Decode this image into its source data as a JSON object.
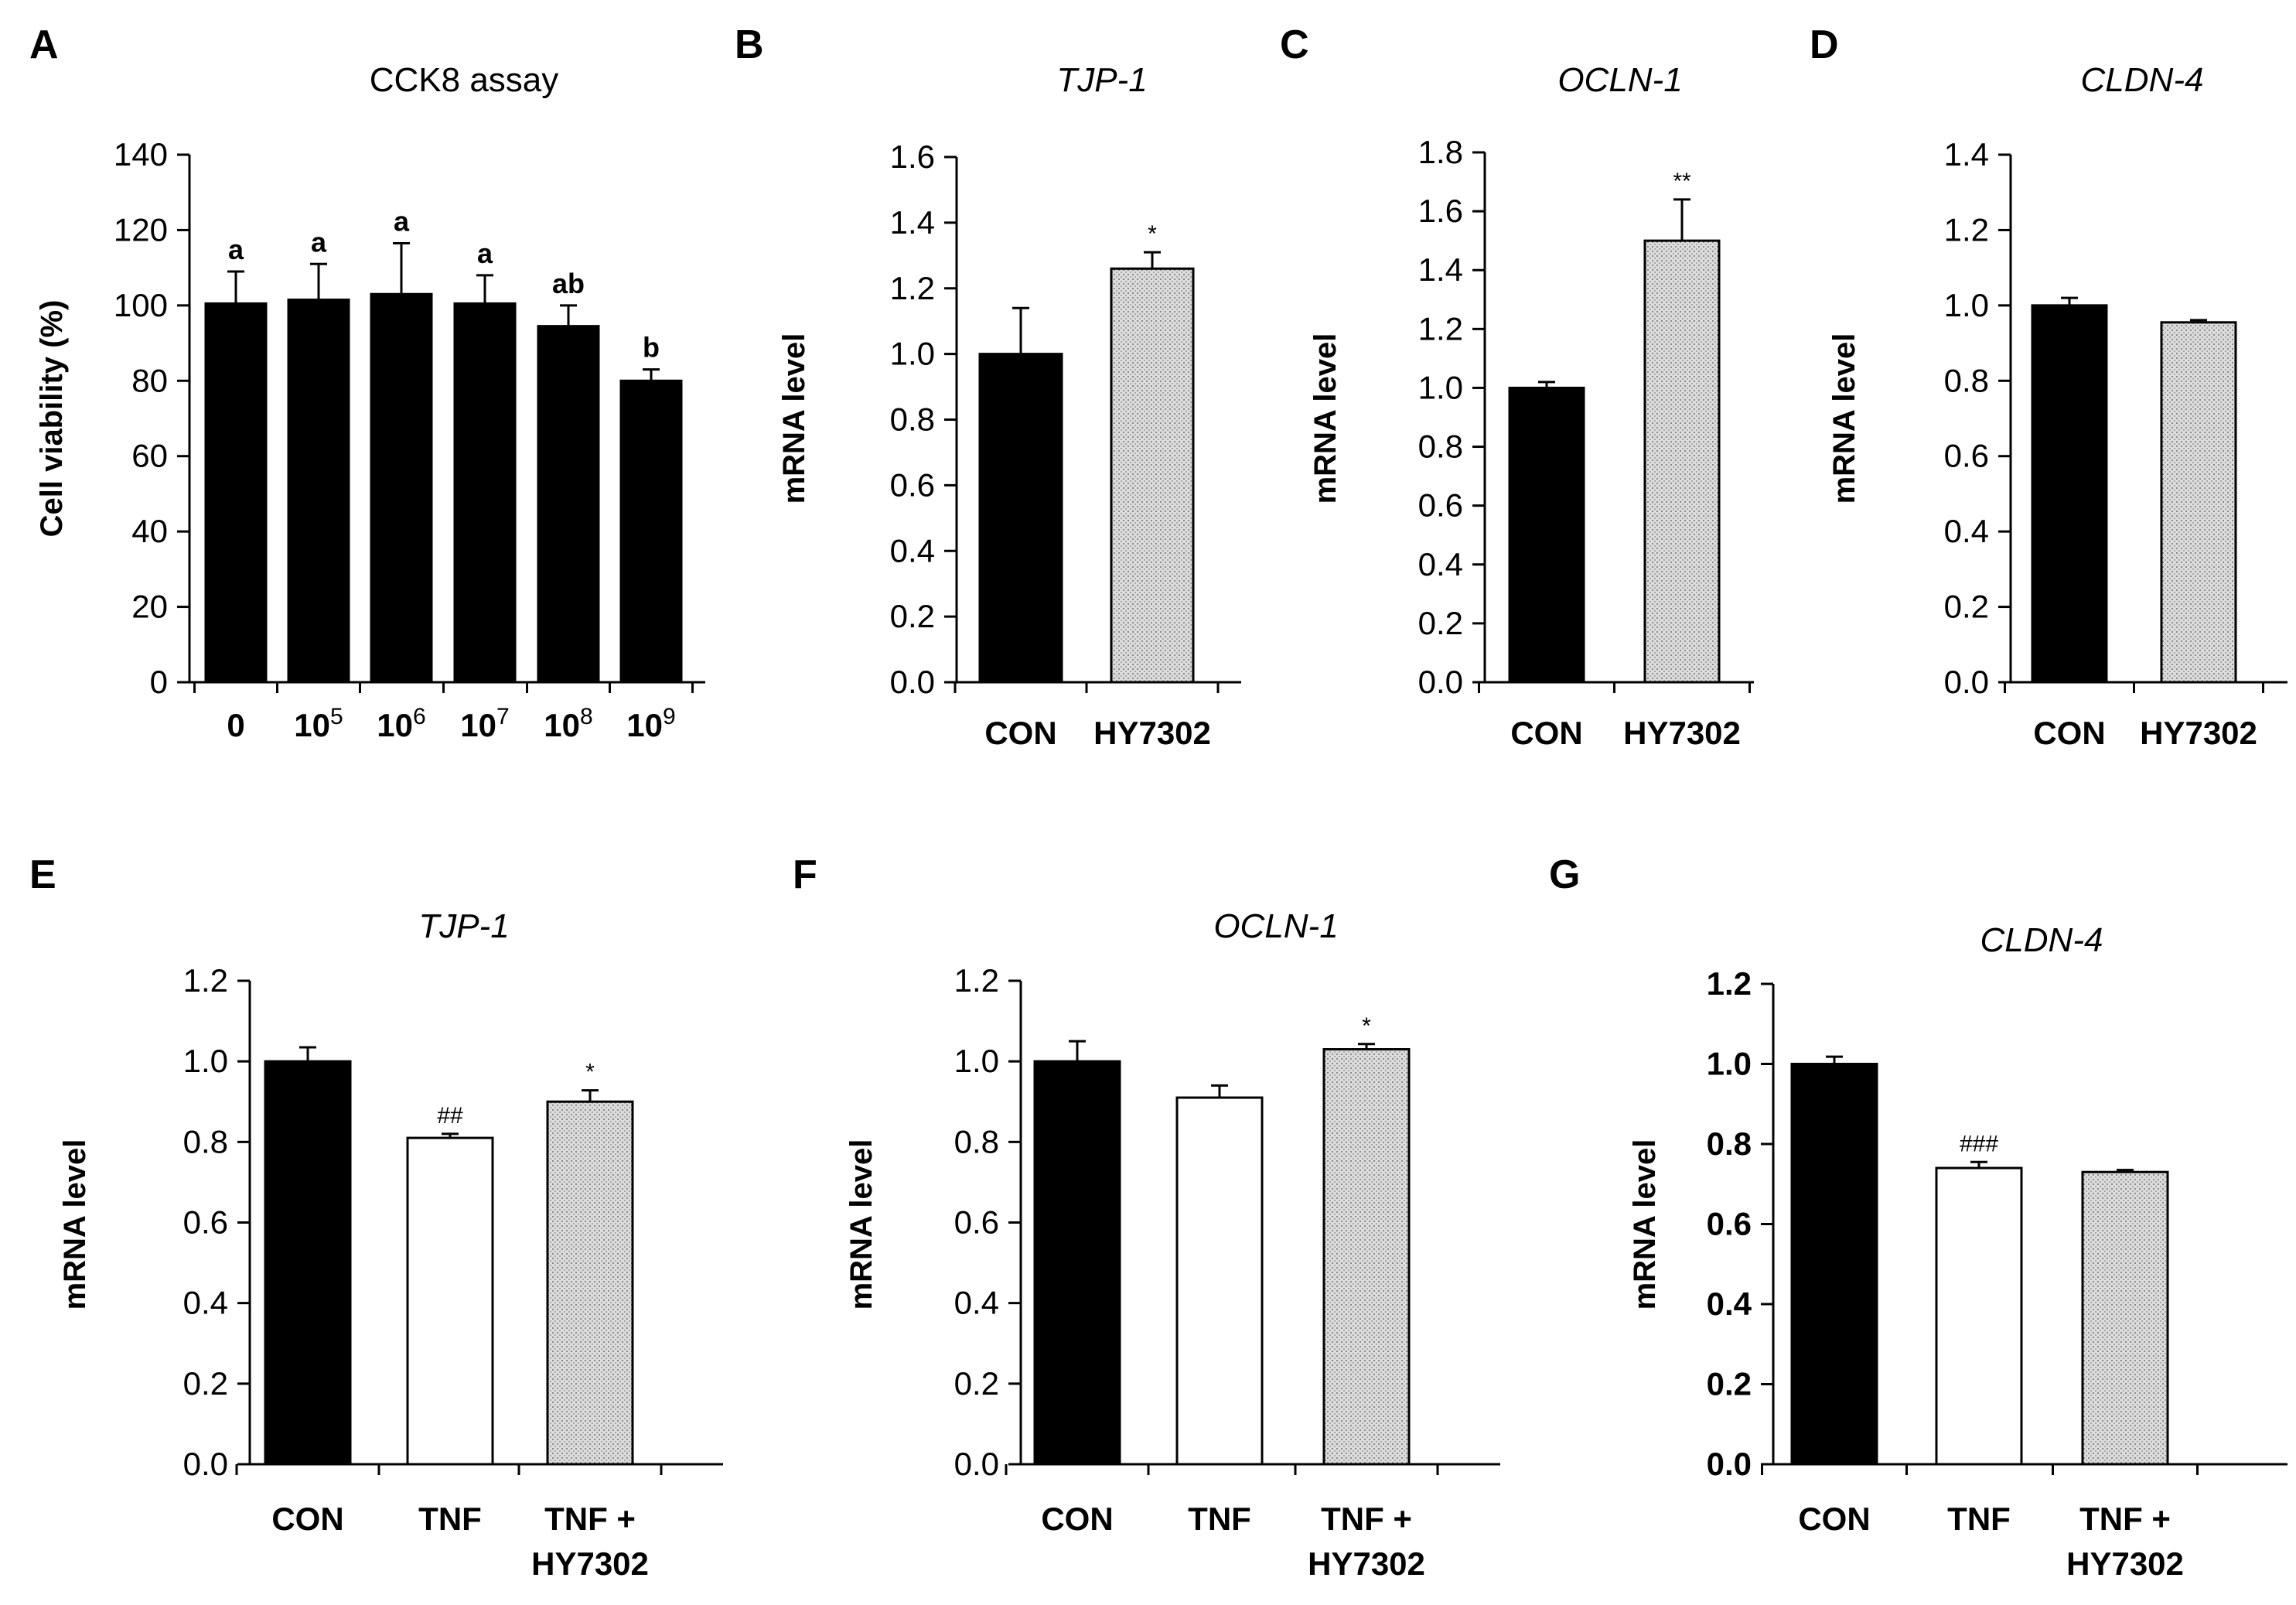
{
  "colors": {
    "axis": "#000000",
    "bar_black": "#000000",
    "bar_white": "#ffffff",
    "bar_dotted": "#d8d8d8",
    "text": "#000000"
  },
  "chart_data": [
    {
      "panel": "A",
      "type": "bar",
      "title": "CCK8 assay",
      "title_italic": false,
      "ylabel": "Cell viability (%)",
      "ylim": [
        0,
        140
      ],
      "yticks": [
        "0",
        "20",
        "40",
        "60",
        "80",
        "100",
        "120",
        "140"
      ],
      "categories": [
        "0",
        "10",
        "10",
        "10",
        "10",
        "10"
      ],
      "category_superscripts": [
        "",
        "5",
        "6",
        "7",
        "8",
        "9"
      ],
      "values": [
        100.5,
        101.5,
        103.0,
        100.5,
        94.5,
        80.0
      ],
      "errors": [
        8.5,
        9.5,
        13.5,
        7.5,
        5.5,
        3.0
      ],
      "fills": [
        "black",
        "black",
        "black",
        "black",
        "black",
        "black"
      ],
      "annotations": [
        "a",
        "a",
        "a",
        "a",
        "ab",
        "b"
      ],
      "annotation_style": "bold"
    },
    {
      "panel": "B",
      "type": "bar",
      "title": "TJP-1",
      "title_italic": true,
      "ylabel": "mRNA level",
      "ylim": [
        0,
        1.6
      ],
      "yticks": [
        "0.0",
        "0.2",
        "0.4",
        "0.6",
        "0.8",
        "1.0",
        "1.2",
        "1.4",
        "1.6"
      ],
      "categories": [
        "CON",
        "HY7302"
      ],
      "values": [
        1.0,
        1.26
      ],
      "errors": [
        0.14,
        0.05
      ],
      "fills": [
        "black",
        "dotted"
      ],
      "annotations": [
        "",
        "*"
      ],
      "annotation_style": "normal"
    },
    {
      "panel": "C",
      "type": "bar",
      "title": "OCLN-1",
      "title_italic": true,
      "ylabel": "mRNA level",
      "ylim": [
        0,
        1.8
      ],
      "yticks": [
        "0.0",
        "0.2",
        "0.4",
        "0.6",
        "0.8",
        "1.0",
        "1.2",
        "1.4",
        "1.6",
        "1.8"
      ],
      "categories": [
        "CON",
        "HY7302"
      ],
      "values": [
        1.0,
        1.5
      ],
      "errors": [
        0.02,
        0.14
      ],
      "fills": [
        "black",
        "dotted"
      ],
      "annotations": [
        "",
        "**"
      ],
      "annotation_style": "normal"
    },
    {
      "panel": "D",
      "type": "bar",
      "title": "CLDN-4",
      "title_italic": true,
      "ylabel": "mRNA level",
      "ylim": [
        0,
        1.4
      ],
      "yticks": [
        "0.0",
        "0.2",
        "0.4",
        "0.6",
        "0.8",
        "1.0",
        "1.2",
        "1.4"
      ],
      "categories": [
        "CON",
        "HY7302"
      ],
      "values": [
        1.0,
        0.955
      ],
      "errors": [
        0.02,
        0.006
      ],
      "fills": [
        "black",
        "dotted"
      ],
      "annotations": [
        "",
        ""
      ],
      "annotation_style": "normal"
    },
    {
      "panel": "E",
      "type": "bar",
      "title": "TJP-1",
      "title_italic": true,
      "ylabel": "mRNA level",
      "ylim": [
        0,
        1.2
      ],
      "yticks": [
        "0.0",
        "0.2",
        "0.4",
        "0.6",
        "0.8",
        "1.0",
        "1.2"
      ],
      "categories": [
        "CON",
        "TNF",
        "TNF + HY7302"
      ],
      "category_lines": [
        [
          "CON"
        ],
        [
          "TNF"
        ],
        [
          "TNF +",
          "HY7302"
        ]
      ],
      "values": [
        1.0,
        0.81,
        0.9
      ],
      "errors": [
        0.035,
        0.01,
        0.028
      ],
      "fills": [
        "black",
        "white",
        "dotted"
      ],
      "annotations": [
        "",
        "##",
        "*"
      ],
      "annotation_style": "normal"
    },
    {
      "panel": "F",
      "type": "bar",
      "title": "OCLN-1",
      "title_italic": true,
      "ylabel": "mRNA level",
      "ylim": [
        0,
        1.2
      ],
      "yticks": [
        "0.0",
        "0.2",
        "0.4",
        "0.6",
        "0.8",
        "1.0",
        "1.2"
      ],
      "categories": [
        "CON",
        "TNF",
        "TNF + HY7302"
      ],
      "category_lines": [
        [
          "CON"
        ],
        [
          "TNF"
        ],
        [
          "TNF +",
          "HY7302"
        ]
      ],
      "values": [
        1.0,
        0.91,
        1.03
      ],
      "errors": [
        0.05,
        0.03,
        0.013
      ],
      "fills": [
        "black",
        "white",
        "dotted"
      ],
      "annotations": [
        "",
        "",
        "*"
      ],
      "annotation_style": "normal"
    },
    {
      "panel": "G",
      "type": "bar",
      "title": "CLDN-4",
      "title_italic": true,
      "ylabel": "mRNA level",
      "ylim": [
        0,
        1.2
      ],
      "yticks": [
        "0.0",
        "0.2",
        "0.4",
        "0.6",
        "0.8",
        "1.0",
        "1.2"
      ],
      "categories": [
        "CON",
        "TNF",
        "TNF + HY7302"
      ],
      "category_lines": [
        [
          "CON"
        ],
        [
          "TNF"
        ],
        [
          "TNF +",
          "HY7302"
        ]
      ],
      "values": [
        1.0,
        0.74,
        0.73
      ],
      "errors": [
        0.018,
        0.015,
        0.005
      ],
      "fills": [
        "black",
        "white",
        "dotted"
      ],
      "annotations": [
        "",
        "###",
        ""
      ],
      "annotation_style": "normal",
      "bold_y_ticks": true
    }
  ]
}
